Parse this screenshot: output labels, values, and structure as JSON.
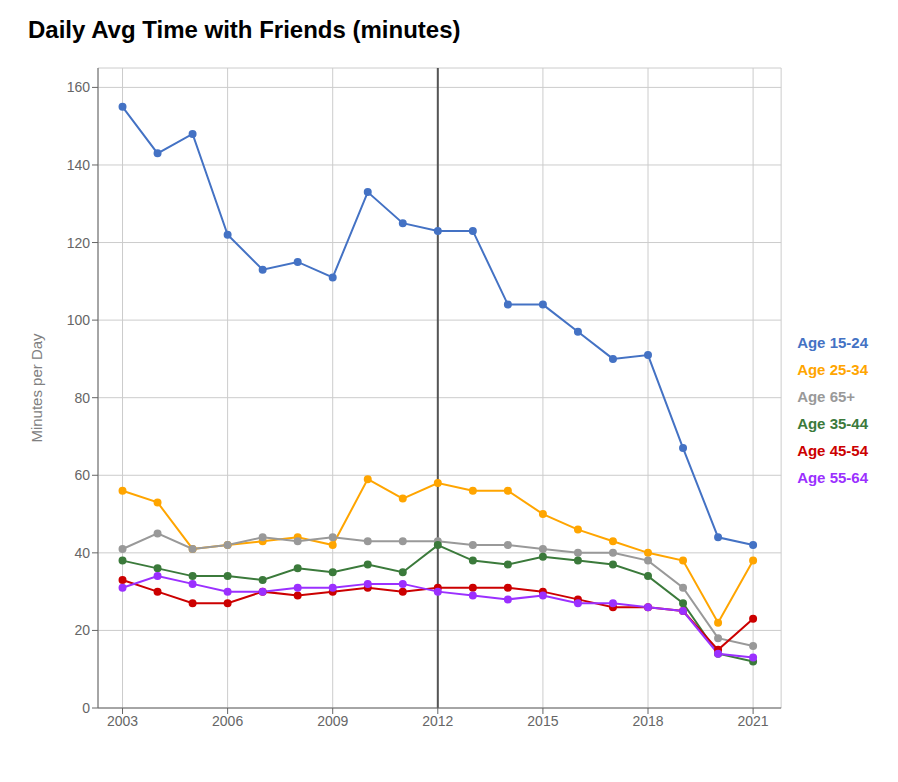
{
  "chart_data": {
    "type": "line",
    "title": "Daily Avg Time with Friends (minutes)",
    "y_label": "Minutes per Day",
    "x": [
      2003,
      2004,
      2005,
      2006,
      2007,
      2008,
      2009,
      2010,
      2011,
      2012,
      2013,
      2014,
      2015,
      2016,
      2017,
      2018,
      2019,
      2020,
      2021
    ],
    "series": [
      {
        "name": "Age 15-24",
        "color": "#4472C4",
        "values": [
          155,
          143,
          148,
          122,
          113,
          115,
          111,
          133,
          125,
          123,
          123,
          104,
          104,
          97,
          90,
          91,
          67,
          44,
          42
        ]
      },
      {
        "name": "Age 25-34",
        "color": "#FFA500",
        "values": [
          56,
          53,
          41,
          42,
          43,
          44,
          42,
          59,
          54,
          58,
          56,
          56,
          50,
          46,
          43,
          40,
          38,
          22,
          38
        ]
      },
      {
        "name": "Age 65+",
        "color": "#999999",
        "values": [
          41,
          45,
          41,
          42,
          44,
          43,
          44,
          43,
          43,
          43,
          42,
          42,
          41,
          40,
          40,
          38,
          31,
          18,
          16
        ]
      },
      {
        "name": "Age 35-44",
        "color": "#3B7A3B",
        "values": [
          38,
          36,
          34,
          34,
          33,
          36,
          35,
          37,
          35,
          42,
          38,
          37,
          39,
          38,
          37,
          34,
          27,
          14,
          12
        ]
      },
      {
        "name": "Age 45-54",
        "color": "#CC0000",
        "values": [
          33,
          30,
          27,
          27,
          30,
          29,
          30,
          31,
          30,
          31,
          31,
          31,
          30,
          28,
          26,
          26,
          25,
          15,
          23
        ]
      },
      {
        "name": "Age 55-64",
        "color": "#9B30FF",
        "values": [
          31,
          34,
          32,
          30,
          30,
          31,
          31,
          32,
          32,
          30,
          29,
          28,
          29,
          27,
          27,
          26,
          25,
          14,
          13
        ]
      }
    ],
    "xlim": [
      2002.3,
      2021.8
    ],
    "xticks": [
      2003,
      2006,
      2009,
      2012,
      2015,
      2018,
      2021
    ],
    "ylim": [
      0,
      165
    ],
    "yticks": [
      0,
      20,
      40,
      60,
      80,
      100,
      120,
      140,
      160
    ],
    "vline_x": 2012,
    "marker": "circle",
    "grid": true,
    "legend": "right"
  }
}
